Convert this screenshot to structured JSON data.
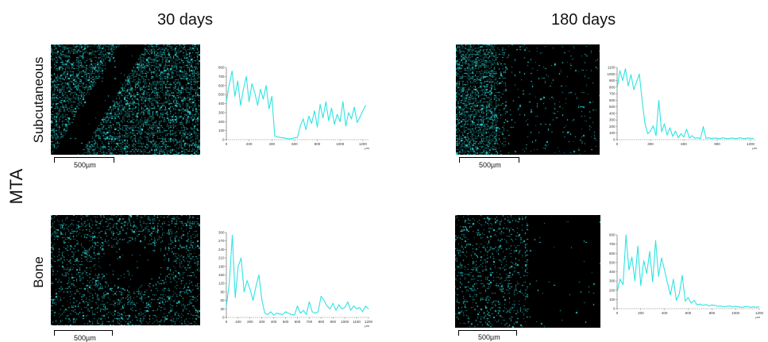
{
  "columns": [
    "30 days",
    "180 days"
  ],
  "material": "MTA",
  "rows": [
    "Subcutaneous",
    "Bone"
  ],
  "scale_bar_label": "500µm",
  "colors": {
    "signal": "#2fe3e3",
    "background": "#000000"
  },
  "chart_data": [
    {
      "type": "line",
      "panel": "Subcutaneous, 30 days",
      "xlim": [
        0,
        1250
      ],
      "ylim": [
        0,
        800
      ],
      "xticks": [
        0,
        200,
        400,
        600,
        800,
        1000,
        1200
      ],
      "yticks": [
        0,
        100,
        200,
        300,
        400,
        500,
        600,
        700,
        800
      ],
      "xunit": "µm",
      "x": [
        0,
        25,
        50,
        75,
        100,
        125,
        150,
        175,
        200,
        225,
        250,
        275,
        300,
        325,
        350,
        375,
        400,
        425,
        450,
        475,
        500,
        525,
        550,
        575,
        600,
        625,
        650,
        675,
        700,
        725,
        750,
        775,
        800,
        825,
        850,
        875,
        900,
        925,
        950,
        975,
        1000,
        1025,
        1050,
        1075,
        1100,
        1125,
        1150,
        1175,
        1200,
        1225
      ],
      "values": [
        420,
        610,
        760,
        480,
        650,
        380,
        560,
        700,
        420,
        620,
        520,
        380,
        560,
        450,
        600,
        340,
        480,
        40,
        30,
        25,
        20,
        15,
        10,
        12,
        20,
        25,
        150,
        230,
        110,
        260,
        180,
        320,
        140,
        390,
        240,
        420,
        210,
        350,
        170,
        280,
        200,
        420,
        150,
        300,
        230,
        360,
        190,
        250,
        320,
        380
      ]
    },
    {
      "type": "line",
      "panel": "Subcutaneous, 180 days",
      "xlim": [
        0,
        1250
      ],
      "ylim": [
        0,
        1100
      ],
      "xticks": [
        0,
        300,
        600,
        900,
        1200
      ],
      "yticks": [
        0,
        100,
        200,
        300,
        400,
        500,
        600,
        700,
        800,
        900,
        1000,
        1100
      ],
      "xunit": "µm",
      "x": [
        0,
        25,
        50,
        75,
        100,
        125,
        150,
        175,
        200,
        225,
        250,
        275,
        300,
        325,
        350,
        375,
        400,
        425,
        450,
        475,
        500,
        525,
        550,
        575,
        600,
        625,
        650,
        675,
        700,
        725,
        750,
        775,
        800,
        825,
        850,
        875,
        900,
        925,
        950,
        975,
        1000,
        1025,
        1050,
        1075,
        1100,
        1125,
        1150,
        1175,
        1200,
        1225
      ],
      "values": [
        780,
        1050,
        900,
        1080,
        820,
        990,
        760,
        880,
        1000,
        600,
        250,
        90,
        130,
        210,
        60,
        600,
        120,
        240,
        70,
        180,
        50,
        130,
        30,
        90,
        40,
        160,
        25,
        60,
        20,
        30,
        15,
        200,
        20,
        30,
        15,
        25,
        20,
        15,
        30,
        20,
        15,
        25,
        20,
        15,
        30,
        20,
        15,
        25,
        20,
        20
      ]
    },
    {
      "type": "line",
      "panel": "Bone, 30 days",
      "xlim": [
        0,
        1200
      ],
      "ylim": [
        0,
        300
      ],
      "xticks": [
        0,
        100,
        200,
        300,
        400,
        500,
        600,
        700,
        800,
        900,
        1000,
        1100,
        1200
      ],
      "yticks": [
        0,
        30,
        60,
        90,
        120,
        150,
        180,
        210,
        240,
        270,
        300
      ],
      "xunit": "µm",
      "x": [
        0,
        25,
        50,
        75,
        100,
        125,
        150,
        175,
        200,
        225,
        250,
        275,
        300,
        325,
        350,
        375,
        400,
        425,
        450,
        475,
        500,
        525,
        550,
        575,
        600,
        625,
        650,
        675,
        700,
        725,
        750,
        775,
        800,
        825,
        850,
        875,
        900,
        925,
        950,
        975,
        1000,
        1025,
        1050,
        1075,
        1100,
        1125,
        1150,
        1175,
        1200
      ],
      "values": [
        40,
        120,
        290,
        70,
        180,
        210,
        90,
        130,
        100,
        60,
        110,
        150,
        60,
        15,
        10,
        20,
        8,
        15,
        12,
        10,
        20,
        15,
        10,
        8,
        40,
        15,
        25,
        10,
        55,
        20,
        15,
        20,
        75,
        60,
        40,
        30,
        50,
        25,
        45,
        30,
        35,
        55,
        25,
        40,
        30,
        35,
        20,
        40,
        30
      ]
    },
    {
      "type": "line",
      "panel": "Bone, 180 days",
      "xlim": [
        0,
        1200
      ],
      "ylim": [
        0,
        800
      ],
      "xticks": [
        0,
        200,
        400,
        600,
        800,
        1000,
        1200
      ],
      "yticks": [
        0,
        100,
        200,
        300,
        400,
        500,
        600,
        700,
        800
      ],
      "xunit": "µm",
      "x": [
        0,
        25,
        50,
        75,
        100,
        125,
        150,
        175,
        200,
        225,
        250,
        275,
        300,
        325,
        350,
        375,
        400,
        425,
        450,
        475,
        500,
        525,
        550,
        575,
        600,
        625,
        650,
        675,
        700,
        725,
        750,
        775,
        800,
        825,
        850,
        875,
        900,
        925,
        950,
        975,
        1000,
        1025,
        1050,
        1075,
        1100,
        1125,
        1150,
        1175,
        1200
      ],
      "values": [
        180,
        320,
        260,
        800,
        420,
        560,
        300,
        680,
        250,
        520,
        380,
        620,
        290,
        740,
        350,
        550,
        420,
        280,
        150,
        320,
        90,
        160,
        360,
        80,
        120,
        60,
        90,
        40,
        50,
        35,
        45,
        30,
        40,
        35,
        25,
        30,
        20,
        25,
        30,
        20,
        25,
        20,
        15,
        20,
        25,
        15,
        20,
        15,
        20
      ]
    }
  ]
}
